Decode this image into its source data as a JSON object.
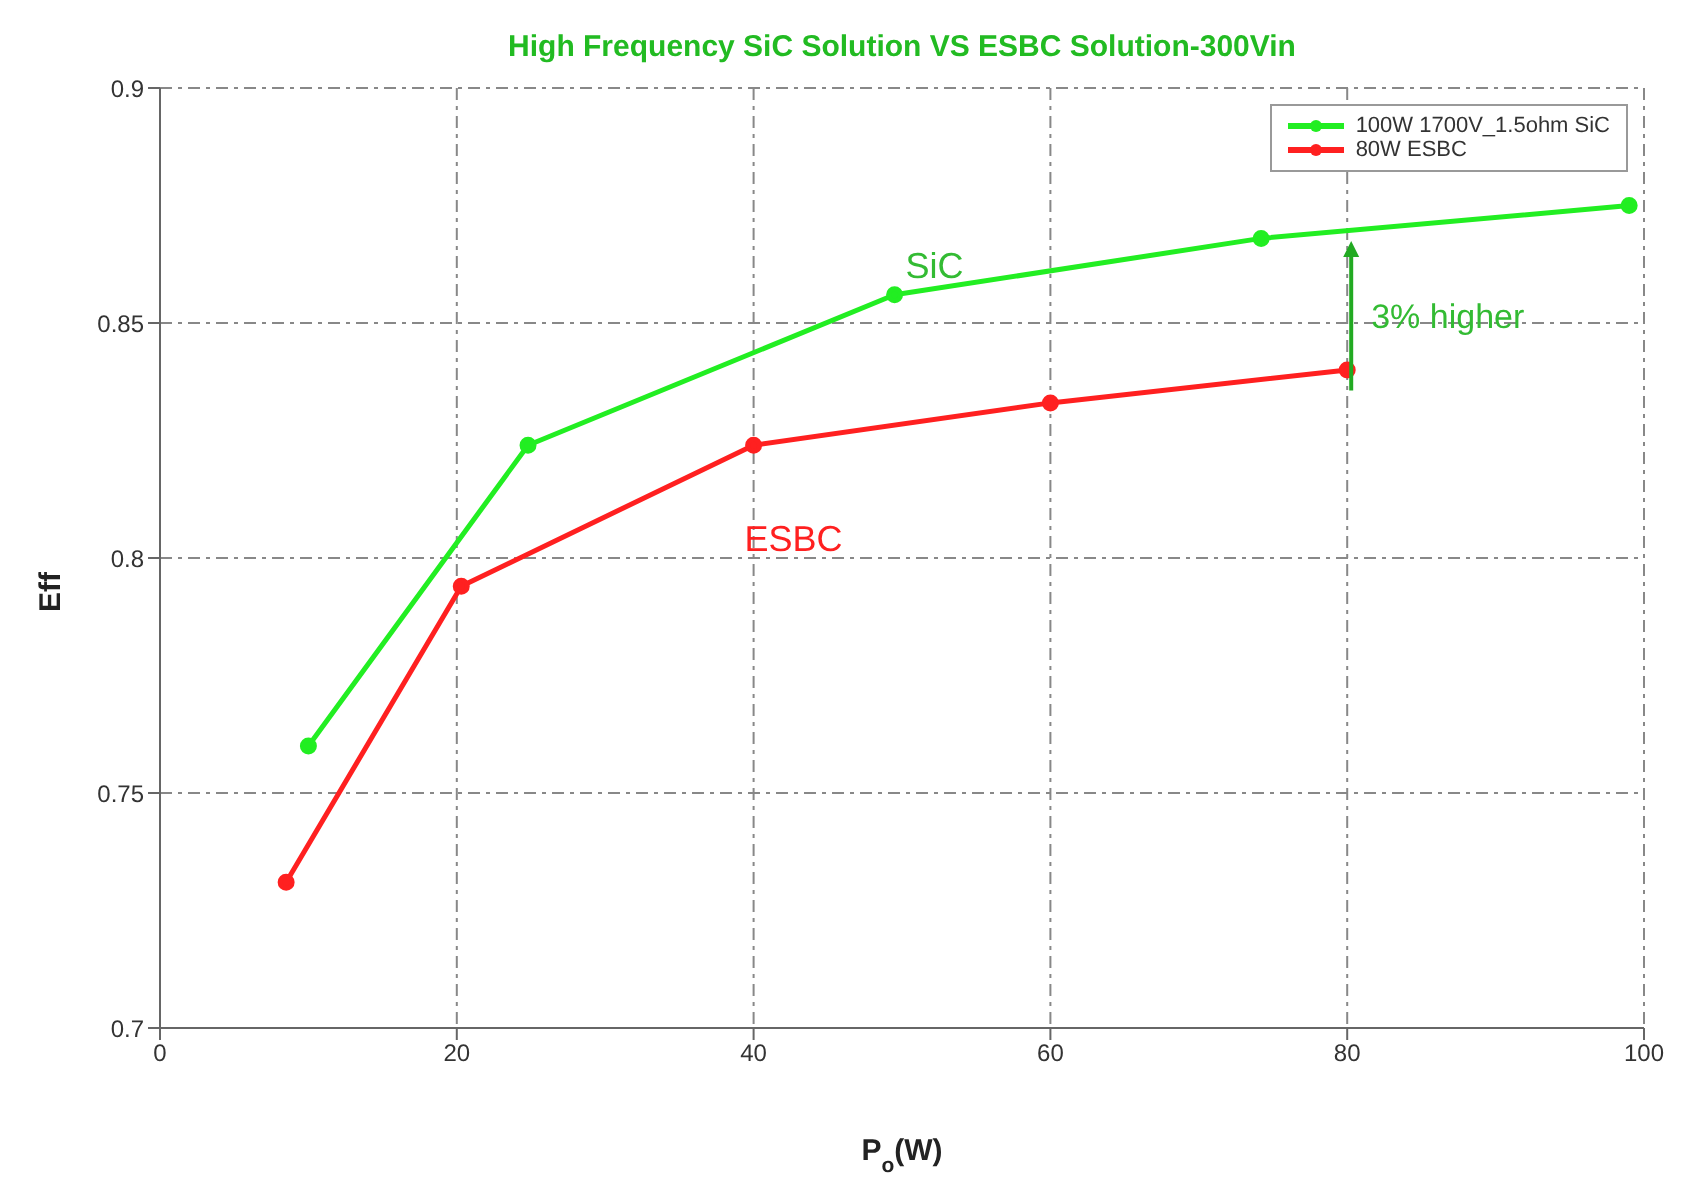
{
  "chart_data": {
    "type": "line",
    "title": "High Frequency SiC Solution VS ESBC Solution-300Vin",
    "xlabel": "P$_{o}$(W)",
    "ylabel": "Eff",
    "series": [
      {
        "name": "100W 1700V_1.5ohm SiC",
        "color": "#22ee22",
        "x": [
          10,
          24.8,
          49.5,
          74.2,
          99
        ],
        "values": [
          0.76,
          0.824,
          0.856,
          0.868,
          0.875
        ]
      },
      {
        "name": "80W ESBC",
        "color": "#ff2020",
        "x": [
          8.5,
          20.3,
          40,
          60,
          80
        ],
        "values": [
          0.731,
          0.794,
          0.824,
          0.833,
          0.84
        ]
      }
    ],
    "xlim": [
      0,
      100
    ],
    "xticks": [
      0,
      20,
      40,
      60,
      80,
      100
    ],
    "ylim": [
      0.7,
      0.9
    ],
    "yticks": [
      0.7,
      0.75,
      0.8,
      0.85,
      0.9
    ],
    "annotations": [
      "SiC",
      "ESBC",
      "3% higher"
    ],
    "grid": true,
    "legend": "top right",
    "marker": "circle",
    "line_style": "solid"
  }
}
